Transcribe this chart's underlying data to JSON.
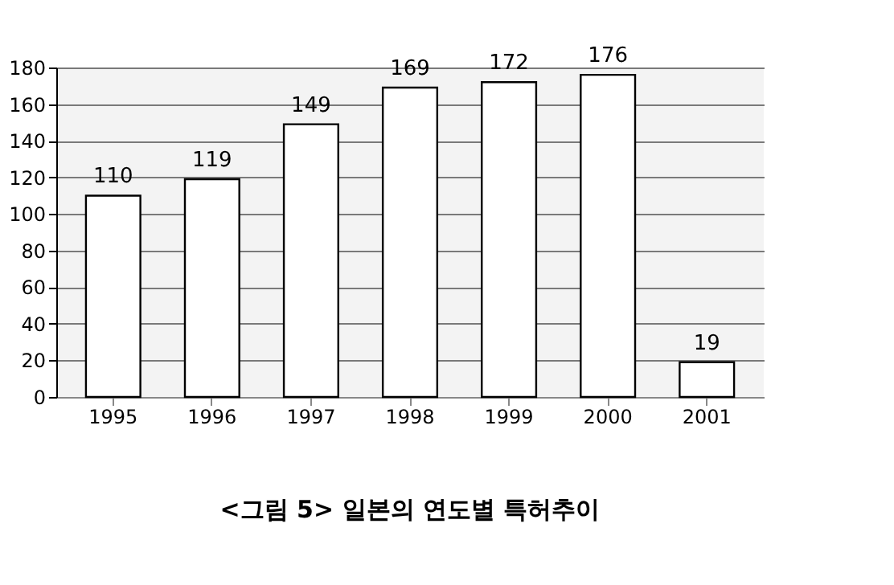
{
  "chart_data": {
    "type": "bar",
    "title": "<그림 5> 일본의 연도별 특허추이",
    "categories": [
      "1995",
      "1996",
      "1997",
      "1998",
      "1999",
      "2000",
      "2001"
    ],
    "values": [
      110,
      119,
      149,
      169,
      172,
      176,
      19
    ],
    "color": "#ffffff",
    "ylim": [
      0,
      180
    ],
    "yticks": [
      0,
      20,
      40,
      60,
      80,
      100,
      120,
      140,
      160,
      180
    ],
    "grid": "y",
    "data_labels": true
  }
}
